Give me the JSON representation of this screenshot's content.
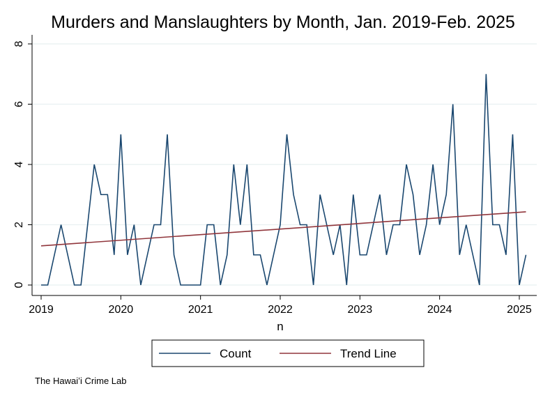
{
  "chart_data": {
    "type": "line",
    "title": "Murders and Manslaughters by Month, Jan. 2019-Feb. 2025",
    "xlabel": "n",
    "ylabel": "",
    "ylim": [
      0,
      8
    ],
    "yticks": [
      "0",
      "2",
      "4",
      "6",
      "8"
    ],
    "xticks": [
      "2019",
      "2020",
      "2021",
      "2022",
      "2023",
      "2024",
      "2025"
    ],
    "x_start": "2019-01",
    "grid": true,
    "legend_position": "bottom",
    "series": [
      {
        "name": "Count",
        "color": "#1a476f",
        "values": [
          0,
          0,
          1,
          2,
          1,
          0,
          0,
          2,
          4,
          3,
          3,
          1,
          5,
          1,
          2,
          0,
          1,
          2,
          2,
          5,
          1,
          0,
          0,
          0,
          0,
          2,
          2,
          0,
          1,
          4,
          2,
          4,
          1,
          1,
          0,
          1,
          2,
          5,
          3,
          2,
          2,
          0,
          3,
          2,
          1,
          2,
          0,
          3,
          1,
          1,
          2,
          3,
          1,
          2,
          2,
          4,
          3,
          1,
          2,
          4,
          2,
          3,
          6,
          1,
          2,
          1,
          0,
          7,
          2,
          2,
          1,
          5,
          0,
          1
        ]
      },
      {
        "name": "Trend Line",
        "color": "#90353b",
        "start": 1.3,
        "end": 2.43
      }
    ]
  },
  "footer": "The Hawaiʻi Crime Lab"
}
